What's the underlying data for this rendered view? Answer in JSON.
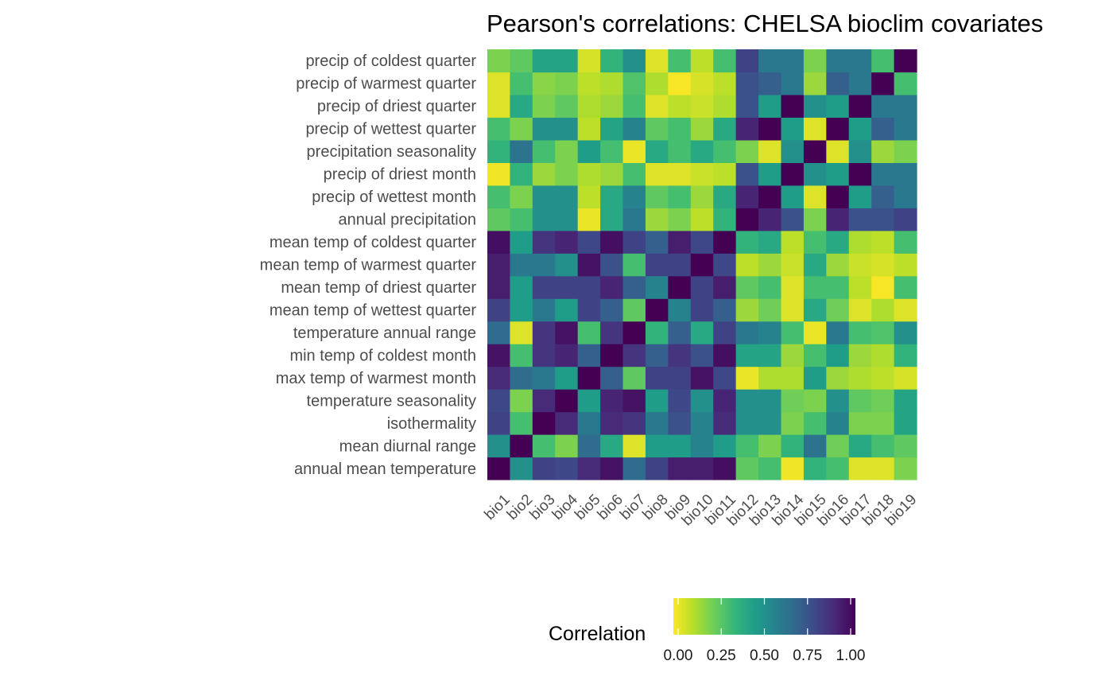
{
  "chart_data": {
    "type": "heatmap",
    "title": "Pearson's correlations: CHELSA bioclim covariates",
    "xlabel": "",
    "ylabel": "",
    "x_categories": [
      "bio1",
      "bio2",
      "bio3",
      "bio4",
      "bio5",
      "bio6",
      "bio7",
      "bio8",
      "bio9",
      "bio10",
      "bio11",
      "bio12",
      "bio13",
      "bio14",
      "bio15",
      "bio16",
      "bio17",
      "bio18",
      "bio19"
    ],
    "y_categories": [
      "annual mean temperature",
      "mean diurnal range",
      "isothermality",
      "temperature seasonality",
      "max temp of warmest month",
      "min temp of coldest month",
      "temperature annual range",
      "mean temp of wettest quarter",
      "mean temp of driest quarter",
      "mean temp of warmest quarter",
      "mean temp of coldest quarter",
      "annual precipitation",
      "precip of wettest month",
      "precip of driest month",
      "precipitation seasonality",
      "precip of wettest quarter",
      "precip of driest quarter",
      "precip of warmest quarter",
      "precip of coldest quarter"
    ],
    "values": [
      [
        1.0,
        0.5,
        0.8,
        0.78,
        0.88,
        0.95,
        0.65,
        0.8,
        0.92,
        0.92,
        0.96,
        0.25,
        0.3,
        0.02,
        0.35,
        0.3,
        0.05,
        0.05,
        0.2
      ],
      [
        0.5,
        1.0,
        0.3,
        0.2,
        0.65,
        0.4,
        0.05,
        0.45,
        0.45,
        0.55,
        0.45,
        0.3,
        0.2,
        0.35,
        0.62,
        0.22,
        0.4,
        0.3,
        0.25
      ],
      [
        0.8,
        0.3,
        1.0,
        0.88,
        0.6,
        0.88,
        0.85,
        0.6,
        0.75,
        0.55,
        0.88,
        0.5,
        0.5,
        0.2,
        0.3,
        0.55,
        0.2,
        0.2,
        0.42
      ],
      [
        0.78,
        0.2,
        0.88,
        1.0,
        0.45,
        0.9,
        0.95,
        0.45,
        0.78,
        0.5,
        0.9,
        0.5,
        0.5,
        0.22,
        0.2,
        0.5,
        0.25,
        0.22,
        0.42
      ],
      [
        0.88,
        0.65,
        0.6,
        0.45,
        1.0,
        0.7,
        0.25,
        0.8,
        0.8,
        0.95,
        0.78,
        0.03,
        0.12,
        0.12,
        0.45,
        0.15,
        0.12,
        0.1,
        0.06
      ],
      [
        0.95,
        0.3,
        0.85,
        0.9,
        0.7,
        1.0,
        0.85,
        0.7,
        0.85,
        0.75,
        0.96,
        0.42,
        0.42,
        0.15,
        0.3,
        0.45,
        0.15,
        0.12,
        0.35
      ],
      [
        0.65,
        0.05,
        0.85,
        0.95,
        0.3,
        0.85,
        1.0,
        0.35,
        0.7,
        0.4,
        0.8,
        0.6,
        0.55,
        0.3,
        0.03,
        0.6,
        0.3,
        0.28,
        0.5
      ],
      [
        0.8,
        0.45,
        0.6,
        0.45,
        0.8,
        0.7,
        0.25,
        1.0,
        0.55,
        0.8,
        0.7,
        0.15,
        0.22,
        0.05,
        0.4,
        0.22,
        0.05,
        0.12,
        0.05
      ],
      [
        0.92,
        0.45,
        0.8,
        0.8,
        0.8,
        0.9,
        0.7,
        0.55,
        1.0,
        0.8,
        0.92,
        0.25,
        0.3,
        0.05,
        0.3,
        0.3,
        0.1,
        0.01,
        0.3
      ],
      [
        0.92,
        0.6,
        0.6,
        0.5,
        0.95,
        0.75,
        0.3,
        0.8,
        0.8,
        1.0,
        0.78,
        0.1,
        0.15,
        0.08,
        0.4,
        0.15,
        0.08,
        0.06,
        0.1
      ],
      [
        0.96,
        0.45,
        0.85,
        0.9,
        0.78,
        0.96,
        0.8,
        0.7,
        0.92,
        0.78,
        1.0,
        0.35,
        0.4,
        0.1,
        0.3,
        0.4,
        0.12,
        0.1,
        0.3
      ],
      [
        0.25,
        0.3,
        0.5,
        0.5,
        0.03,
        0.4,
        0.6,
        0.15,
        0.2,
        0.1,
        0.35,
        1.0,
        0.9,
        0.75,
        0.2,
        0.9,
        0.75,
        0.75,
        0.8
      ],
      [
        0.3,
        0.2,
        0.5,
        0.5,
        0.1,
        0.4,
        0.55,
        0.25,
        0.3,
        0.15,
        0.4,
        0.9,
        1.0,
        0.45,
        0.05,
        1.0,
        0.45,
        0.7,
        0.6
      ],
      [
        0.02,
        0.35,
        0.15,
        0.2,
        0.12,
        0.15,
        0.3,
        0.05,
        0.05,
        0.08,
        0.1,
        0.75,
        0.45,
        1.0,
        0.5,
        0.45,
        1.0,
        0.6,
        0.6
      ],
      [
        0.35,
        0.62,
        0.3,
        0.2,
        0.45,
        0.3,
        0.03,
        0.4,
        0.3,
        0.4,
        0.3,
        0.2,
        0.05,
        0.5,
        1.0,
        0.05,
        0.5,
        0.15,
        0.2
      ],
      [
        0.3,
        0.2,
        0.5,
        0.5,
        0.1,
        0.42,
        0.55,
        0.25,
        0.3,
        0.15,
        0.4,
        0.9,
        1.0,
        0.45,
        0.05,
        1.0,
        0.45,
        0.7,
        0.6
      ],
      [
        0.05,
        0.4,
        0.2,
        0.25,
        0.12,
        0.15,
        0.3,
        0.05,
        0.1,
        0.08,
        0.12,
        0.75,
        0.45,
        1.0,
        0.5,
        0.45,
        1.0,
        0.6,
        0.6
      ],
      [
        0.05,
        0.3,
        0.18,
        0.2,
        0.1,
        0.12,
        0.28,
        0.12,
        0.01,
        0.06,
        0.1,
        0.75,
        0.7,
        0.6,
        0.15,
        0.7,
        0.6,
        1.0,
        0.3
      ],
      [
        0.2,
        0.25,
        0.42,
        0.42,
        0.06,
        0.35,
        0.5,
        0.05,
        0.3,
        0.1,
        0.3,
        0.8,
        0.6,
        0.6,
        0.2,
        0.6,
        0.6,
        0.3,
        1.0
      ]
    ],
    "color_scale": {
      "name": "viridis (reversed)",
      "min": 0,
      "max": 1,
      "low_color": "#fde725",
      "high_color": "#440154"
    },
    "legend": {
      "title": "Correlation",
      "position": "bottom",
      "ticks": [
        "0.00",
        "0.25",
        "0.50",
        "0.75",
        "1.00"
      ],
      "tick_values": [
        0,
        0.25,
        0.5,
        0.75,
        1
      ]
    },
    "grid": false
  }
}
